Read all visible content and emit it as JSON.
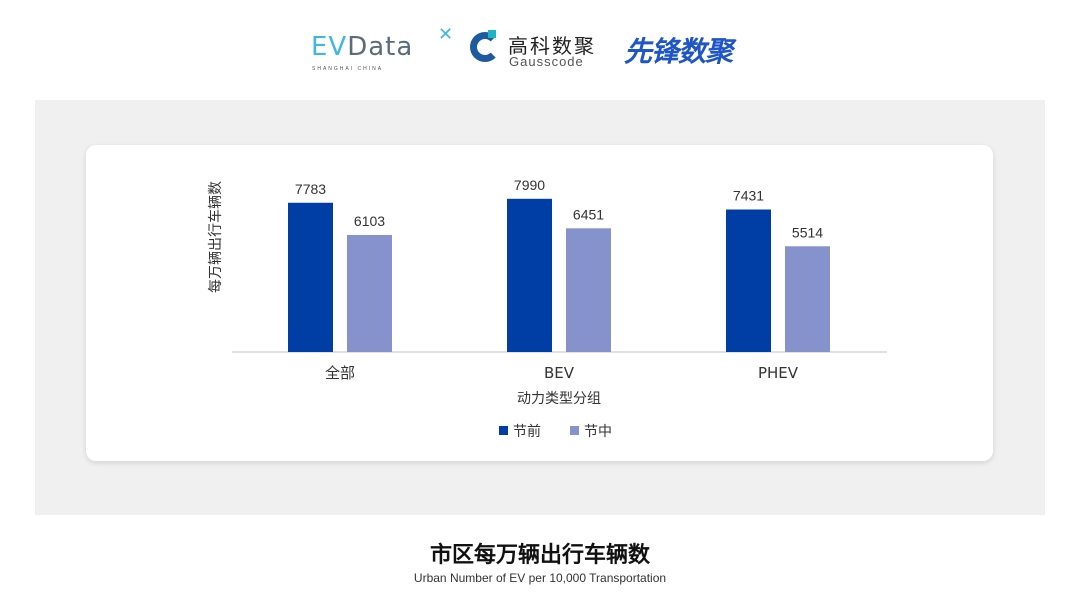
{
  "logos": {
    "evdata": {
      "ev": "EV",
      "data": "Data",
      "sub": "SHANGHAI CHINA"
    },
    "gausscode": {
      "cn": "高科数聚",
      "en": "Gausscode"
    },
    "xianfeng": "先锋数聚"
  },
  "chart_data": {
    "type": "bar",
    "categories": [
      "全部",
      "BEV",
      "PHEV"
    ],
    "series": [
      {
        "name": "节前",
        "values": [
          7783,
          7990,
          7431
        ],
        "color": "#003da5"
      },
      {
        "name": "节中",
        "values": [
          6103,
          6451,
          5514
        ],
        "color": "#8592cb"
      }
    ],
    "xlabel": "动力类型分组",
    "ylabel": "每万辆出行车辆数",
    "ylim": [
      0,
      8000
    ],
    "grid": false,
    "legend": "bottom",
    "data_labels": true
  },
  "footer": {
    "title": "市区每万辆出行车辆数",
    "subtitle": "Urban Number of EV per 10,000 Transportation"
  }
}
